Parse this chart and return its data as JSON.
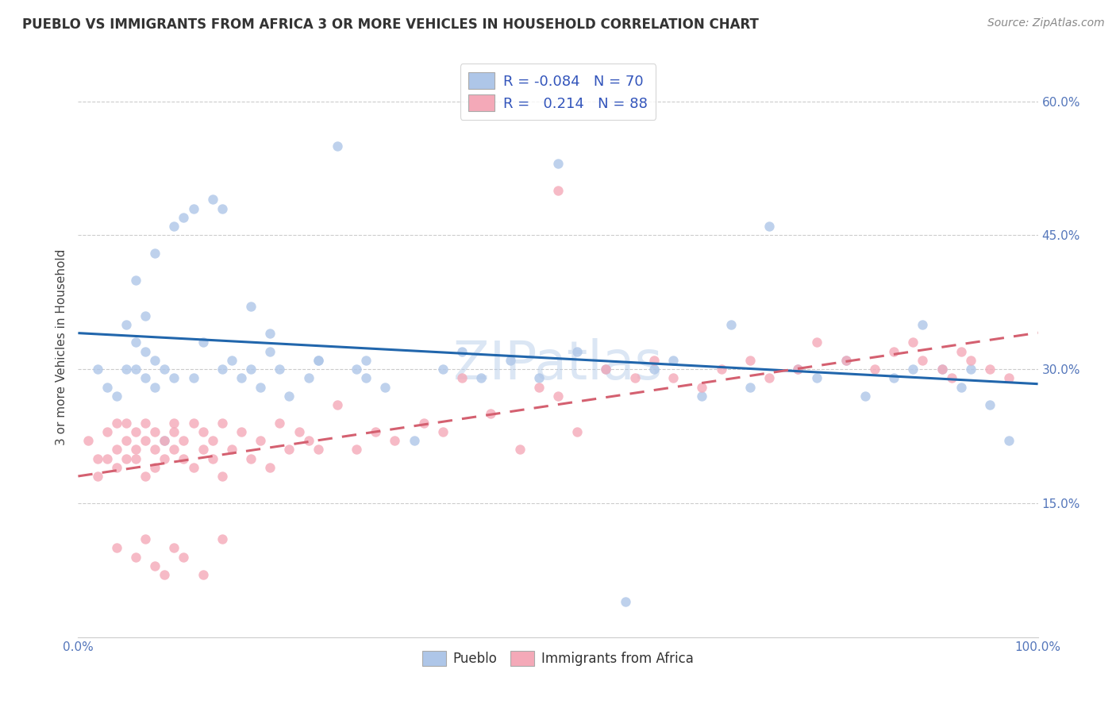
{
  "title": "PUEBLO VS IMMIGRANTS FROM AFRICA 3 OR MORE VEHICLES IN HOUSEHOLD CORRELATION CHART",
  "source": "Source: ZipAtlas.com",
  "ylabel": "3 or more Vehicles in Household",
  "xlim": [
    0.0,
    1.0
  ],
  "ylim": [
    0.0,
    0.65
  ],
  "xticks": [
    0.0,
    1.0
  ],
  "xticklabels": [
    "0.0%",
    "100.0%"
  ],
  "ytick_positions": [
    0.15,
    0.3,
    0.45,
    0.6
  ],
  "yticklabels": [
    "15.0%",
    "30.0%",
    "45.0%",
    "60.0%"
  ],
  "pueblo_color": "#aec6e8",
  "africa_color": "#f4a9b8",
  "pueblo_line_color": "#2166ac",
  "africa_line_color": "#d46070",
  "R_pueblo": -0.084,
  "N_pueblo": 70,
  "R_africa": 0.214,
  "N_africa": 88,
  "legend_label_1": "Pueblo",
  "legend_label_2": "Immigrants from Africa",
  "watermark": "ZIPatlas",
  "pueblo_x": [
    0.02,
    0.03,
    0.04,
    0.05,
    0.05,
    0.06,
    0.06,
    0.07,
    0.07,
    0.08,
    0.08,
    0.09,
    0.09,
    0.1,
    0.11,
    0.12,
    0.13,
    0.14,
    0.15,
    0.16,
    0.17,
    0.18,
    0.19,
    0.2,
    0.21,
    0.22,
    0.24,
    0.25,
    0.27,
    0.29,
    0.3,
    0.32,
    0.35,
    0.38,
    0.4,
    0.42,
    0.45,
    0.48,
    0.5,
    0.52,
    0.55,
    0.57,
    0.6,
    0.62,
    0.65,
    0.68,
    0.7,
    0.72,
    0.75,
    0.77,
    0.8,
    0.82,
    0.85,
    0.87,
    0.88,
    0.9,
    0.92,
    0.93,
    0.95,
    0.97,
    0.06,
    0.07,
    0.08,
    0.1,
    0.12,
    0.15,
    0.18,
    0.2,
    0.25,
    0.3
  ],
  "pueblo_y": [
    0.3,
    0.28,
    0.27,
    0.3,
    0.35,
    0.3,
    0.33,
    0.29,
    0.32,
    0.28,
    0.31,
    0.3,
    0.22,
    0.29,
    0.47,
    0.29,
    0.33,
    0.49,
    0.3,
    0.31,
    0.29,
    0.3,
    0.28,
    0.32,
    0.3,
    0.27,
    0.29,
    0.31,
    0.55,
    0.3,
    0.29,
    0.28,
    0.22,
    0.3,
    0.32,
    0.29,
    0.31,
    0.29,
    0.53,
    0.32,
    0.3,
    0.04,
    0.3,
    0.31,
    0.27,
    0.35,
    0.28,
    0.46,
    0.3,
    0.29,
    0.31,
    0.27,
    0.29,
    0.3,
    0.35,
    0.3,
    0.28,
    0.3,
    0.26,
    0.22,
    0.4,
    0.36,
    0.43,
    0.46,
    0.48,
    0.48,
    0.37,
    0.34,
    0.31,
    0.31
  ],
  "africa_x": [
    0.01,
    0.02,
    0.02,
    0.03,
    0.03,
    0.04,
    0.04,
    0.04,
    0.05,
    0.05,
    0.05,
    0.06,
    0.06,
    0.06,
    0.07,
    0.07,
    0.07,
    0.08,
    0.08,
    0.08,
    0.09,
    0.09,
    0.1,
    0.1,
    0.1,
    0.11,
    0.11,
    0.12,
    0.12,
    0.13,
    0.13,
    0.14,
    0.14,
    0.15,
    0.15,
    0.16,
    0.17,
    0.18,
    0.19,
    0.2,
    0.21,
    0.22,
    0.23,
    0.24,
    0.25,
    0.27,
    0.29,
    0.31,
    0.33,
    0.36,
    0.38,
    0.4,
    0.43,
    0.46,
    0.48,
    0.5,
    0.52,
    0.55,
    0.58,
    0.6,
    0.62,
    0.65,
    0.67,
    0.7,
    0.72,
    0.75,
    0.77,
    0.8,
    0.83,
    0.85,
    0.87,
    0.88,
    0.9,
    0.91,
    0.92,
    0.93,
    0.95,
    0.97,
    0.5,
    0.04,
    0.06,
    0.07,
    0.08,
    0.09,
    0.1,
    0.11,
    0.13,
    0.15
  ],
  "africa_y": [
    0.22,
    0.2,
    0.18,
    0.23,
    0.2,
    0.21,
    0.24,
    0.19,
    0.22,
    0.2,
    0.24,
    0.21,
    0.23,
    0.2,
    0.22,
    0.18,
    0.24,
    0.21,
    0.23,
    0.19,
    0.22,
    0.2,
    0.24,
    0.21,
    0.23,
    0.2,
    0.22,
    0.19,
    0.24,
    0.21,
    0.23,
    0.2,
    0.22,
    0.18,
    0.24,
    0.21,
    0.23,
    0.2,
    0.22,
    0.19,
    0.24,
    0.21,
    0.23,
    0.22,
    0.21,
    0.26,
    0.21,
    0.23,
    0.22,
    0.24,
    0.23,
    0.29,
    0.25,
    0.21,
    0.28,
    0.27,
    0.23,
    0.3,
    0.29,
    0.31,
    0.29,
    0.28,
    0.3,
    0.31,
    0.29,
    0.3,
    0.33,
    0.31,
    0.3,
    0.32,
    0.33,
    0.31,
    0.3,
    0.29,
    0.32,
    0.31,
    0.3,
    0.29,
    0.5,
    0.1,
    0.09,
    0.11,
    0.08,
    0.07,
    0.1,
    0.09,
    0.07,
    0.11
  ]
}
